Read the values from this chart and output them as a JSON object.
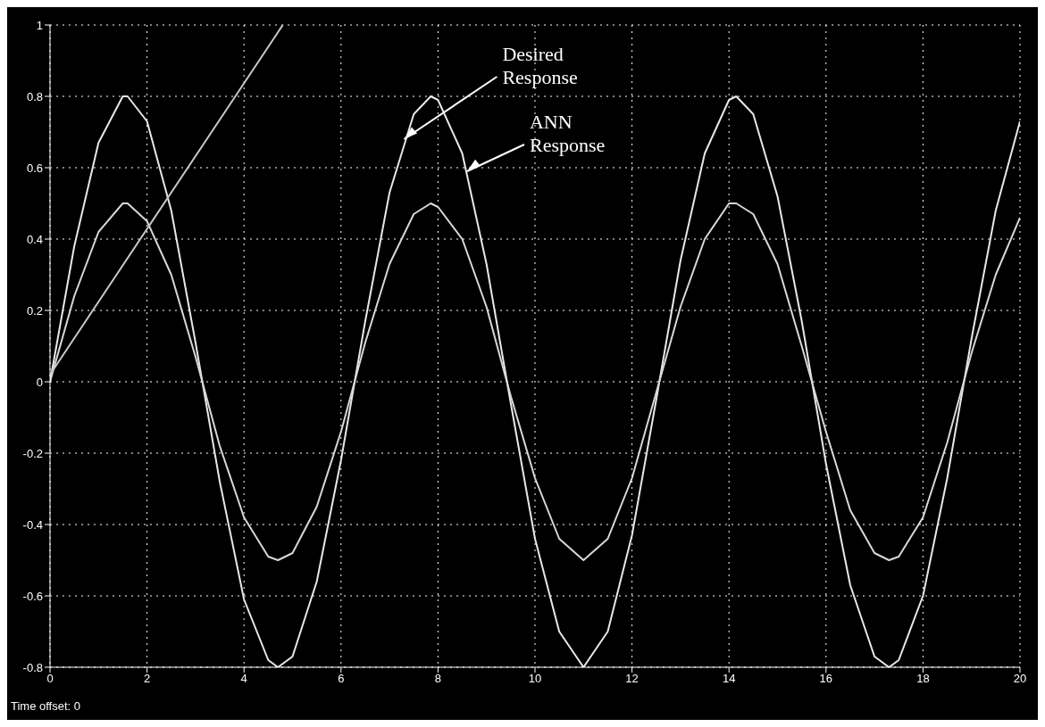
{
  "chart_data": {
    "type": "line",
    "x": [
      0,
      0.5,
      1,
      1.5,
      1.6,
      2,
      2.5,
      3,
      3.5,
      4,
      4.5,
      4.7,
      5,
      5.5,
      6,
      6.5,
      7,
      7.5,
      7.85,
      8,
      8.5,
      9,
      9.5,
      10,
      10.5,
      11,
      11.5,
      12,
      12.5,
      13,
      13.5,
      14,
      14.15,
      14.5,
      15,
      15.5,
      16,
      16.5,
      17,
      17.3,
      17.5,
      18,
      18.5,
      19,
      19.5,
      20
    ],
    "series": [
      {
        "color": "#e8e8e8",
        "values": [
          0,
          0.38,
          0.67,
          0.8,
          0.8,
          0.73,
          0.48,
          0.11,
          -0.28,
          -0.61,
          -0.78,
          -0.8,
          -0.77,
          -0.56,
          -0.22,
          0.17,
          0.53,
          0.75,
          0.8,
          0.79,
          0.64,
          0.33,
          -0.06,
          -0.44,
          -0.7,
          -0.8,
          -0.7,
          -0.43,
          -0.05,
          0.34,
          0.64,
          0.79,
          0.8,
          0.75,
          0.52,
          0.17,
          -0.23,
          -0.57,
          -0.77,
          -0.8,
          -0.78,
          -0.6,
          -0.27,
          0.12,
          0.48,
          0.73
        ]
      },
      {
        "color": "#d8d8d8",
        "values": [
          0,
          0.24,
          0.42,
          0.5,
          0.5,
          0.45,
          0.3,
          0.07,
          -0.18,
          -0.38,
          -0.49,
          -0.5,
          -0.48,
          -0.35,
          -0.14,
          0.11,
          0.33,
          0.47,
          0.5,
          0.49,
          0.4,
          0.21,
          -0.04,
          -0.27,
          -0.44,
          -0.5,
          -0.44,
          -0.27,
          -0.03,
          0.21,
          0.4,
          0.5,
          0.5,
          0.47,
          0.33,
          0.1,
          -0.14,
          -0.36,
          -0.48,
          -0.5,
          -0.49,
          -0.38,
          -0.17,
          0.08,
          0.3,
          0.46
        ]
      },
      {
        "color": "#c8c8c8",
        "x": [
          0,
          4.8
        ],
        "values": [
          0.02,
          1
        ]
      }
    ],
    "xlim": [
      0,
      20
    ],
    "xticks": [
      0,
      2,
      4,
      6,
      8,
      10,
      12,
      14,
      16,
      18,
      20
    ],
    "ylim": [
      -0.8,
      1
    ],
    "yticks": [
      -0.8,
      -0.6,
      -0.4,
      -0.2,
      0,
      0.2,
      0.4,
      0.6,
      0.8,
      1
    ],
    "grid": true,
    "marker": "none",
    "line_style": "solid",
    "annotations": [
      {
        "text": "Desired Response",
        "x": 7.3,
        "y": 0.68
      },
      {
        "text": "ANN Response",
        "x": 8.6,
        "y": 0.59
      },
      "Time offset: 0"
    ]
  }
}
